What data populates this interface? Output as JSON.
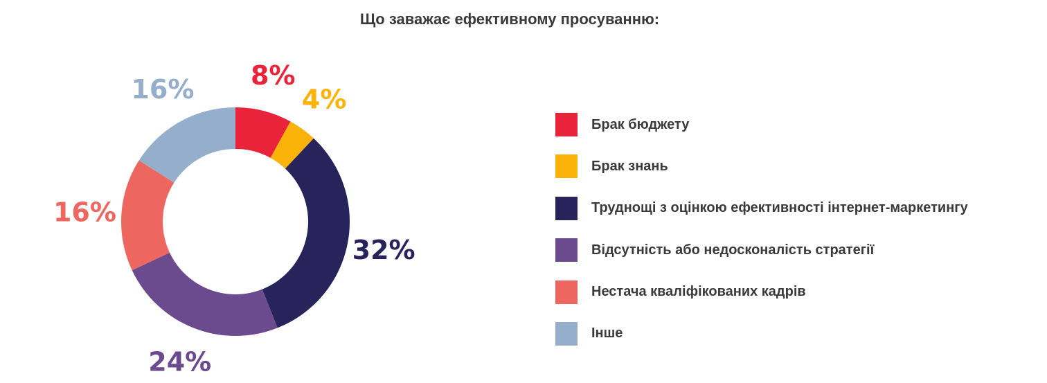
{
  "chart_data": {
    "type": "pie",
    "title": "Що заважає ефективному просуванню:",
    "categories": [
      "Брак бюджету",
      "Брак знань",
      "Труднощі з оцінкою ефективності інтернет-маркетингу",
      "Відсутність або недосконалість стратегії",
      "Нестача кваліфікованих кадрів",
      "Інше"
    ],
    "values": [
      8,
      4,
      32,
      24,
      16,
      16
    ],
    "labels": [
      "8%",
      "4%",
      "32%",
      "24%",
      "16%",
      "16%"
    ],
    "colors": [
      "#e8233a",
      "#fbb30a",
      "#28235a",
      "#6c4a8e",
      "#ee6660",
      "#94aecb"
    ],
    "donut": true,
    "legend": "right"
  }
}
